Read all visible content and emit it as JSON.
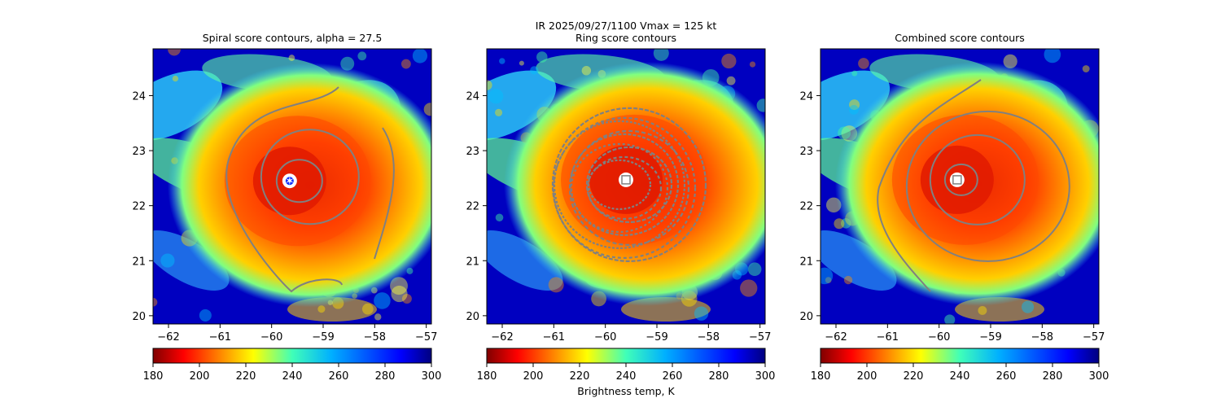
{
  "figure": {
    "suptitle": "IR  2025/09/27/1100    Vmax = 125 kt",
    "colorbar_label": "Brightness temp, K"
  },
  "chart_data": [
    {
      "type": "heatmap",
      "title": "Spiral score contours, alpha = 27.5",
      "xlabel": "",
      "ylabel": "",
      "xlim": [
        -62.3,
        -56.9
      ],
      "ylim": [
        19.85,
        24.85
      ],
      "xticks": [
        "-62",
        "-61",
        "-60",
        "-59",
        "-58",
        "-57"
      ],
      "yticks": [
        "20",
        "21",
        "22",
        "23",
        "24"
      ],
      "eye_center": [
        -59.65,
        22.45
      ],
      "marker": "star",
      "colorbar": {
        "min": 180,
        "max": 300,
        "ticks": [
          "180",
          "200",
          "220",
          "240",
          "260",
          "280",
          "300"
        ],
        "colormap": "jet_r"
      }
    },
    {
      "type": "heatmap",
      "title": "Ring score contours",
      "xlabel": "",
      "ylabel": "",
      "xlim": [
        -62.3,
        -56.9
      ],
      "ylim": [
        19.85,
        24.85
      ],
      "xticks": [
        "-62",
        "-61",
        "-60",
        "-59",
        "-58",
        "-57"
      ],
      "yticks": [
        "20",
        "21",
        "22",
        "23",
        "24"
      ],
      "eye_center": [
        -59.6,
        22.47
      ],
      "marker": "square",
      "colorbar": {
        "min": 180,
        "max": 300,
        "ticks": [
          "180",
          "200",
          "220",
          "240",
          "260",
          "280",
          "300"
        ],
        "colormap": "jet_r"
      }
    },
    {
      "type": "heatmap",
      "title": "Combined score contours",
      "xlabel": "",
      "ylabel": "",
      "xlim": [
        -62.3,
        -56.9
      ],
      "ylim": [
        19.85,
        24.85
      ],
      "xticks": [
        "-62",
        "-61",
        "-60",
        "-59",
        "-58",
        "-57"
      ],
      "yticks": [
        "20",
        "21",
        "22",
        "23",
        "24"
      ],
      "eye_center": [
        -59.65,
        22.47
      ],
      "marker": "square",
      "colorbar": {
        "min": 180,
        "max": 300,
        "ticks": [
          "180",
          "200",
          "220",
          "240",
          "260",
          "280",
          "300"
        ],
        "colormap": "jet_r"
      }
    }
  ],
  "colors": {
    "contour": "#808080",
    "storm_core": "#e01a00",
    "background_cold": "#0000c0"
  }
}
